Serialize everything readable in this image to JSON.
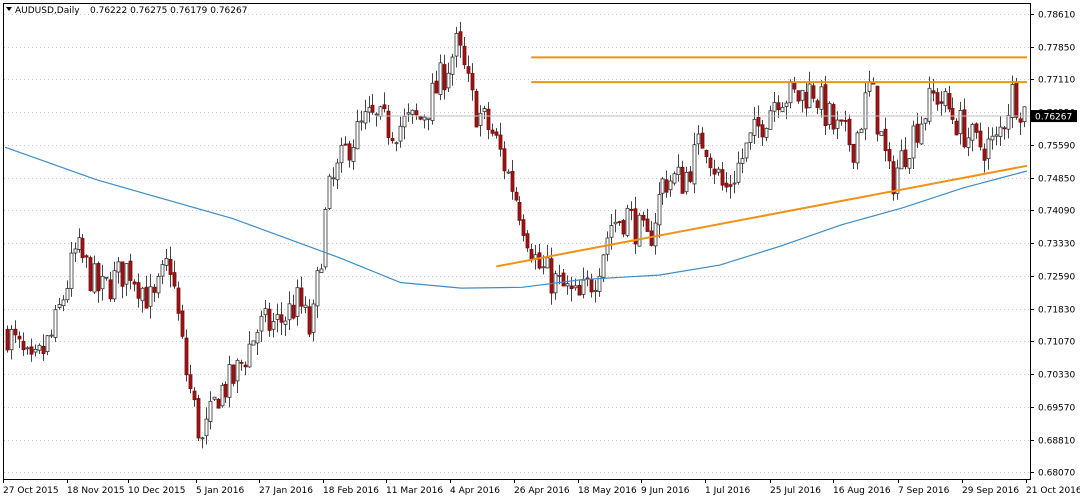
{
  "header": {
    "symbol": "AUDUSD,Daily",
    "quote": "0.76222 0.76275 0.76179 0.76267"
  },
  "colors": {
    "bull_fill": "#ffffff",
    "bull_stroke": "#333333",
    "bear_fill": "#9e1414",
    "bear_stroke": "#7a0d0d",
    "ma_line": "#3c8dc8",
    "trend_line": "#f09216",
    "grid": "#c8c8c8",
    "price_tag_bg": "#000000",
    "price_tag_text": "#ffffff"
  },
  "chart_data": {
    "type": "candlestick",
    "instrument": "AUDUSD",
    "timeframe": "Daily",
    "ylim": [
      0.679,
      0.7885
    ],
    "y_ticks": [
      "0.78610",
      "0.77850",
      "0.77110",
      "0.76350",
      "0.75590",
      "0.74850",
      "0.74090",
      "0.73330",
      "0.72590",
      "0.71830",
      "0.71070",
      "0.70330",
      "0.69570",
      "0.68810",
      "0.68070"
    ],
    "x_ticks": [
      "27 Oct 2015",
      "18 Nov 2015",
      "10 Dec 2015",
      "5 Jan 2016",
      "27 Jan 2016",
      "18 Feb 2016",
      "11 Mar 2016",
      "4 Apr 2016",
      "26 Apr 2016",
      "18 May 2016",
      "9 Jun 2016",
      "1 Jul 2016",
      "25 Jul 2016",
      "16 Aug 2016",
      "7 Sep 2016",
      "29 Sep 2016",
      "21 Oct 2016"
    ],
    "current_price": "0.76267",
    "bar_count": 257,
    "price_path_close": [
      [
        0,
        0.713
      ],
      [
        12,
        0.704
      ],
      [
        22,
        0.712
      ],
      [
        34,
        0.732
      ],
      [
        46,
        0.722
      ],
      [
        60,
        0.728
      ],
      [
        72,
        0.719
      ],
      [
        80,
        0.73
      ],
      [
        88,
        0.704
      ],
      [
        96,
        0.687
      ],
      [
        104,
        0.699
      ],
      [
        112,
        0.702
      ],
      [
        124,
        0.714
      ],
      [
        134,
        0.715
      ],
      [
        144,
        0.72
      ],
      [
        150,
        0.712
      ],
      [
        158,
        0.744
      ],
      [
        168,
        0.756
      ],
      [
        178,
        0.762
      ],
      [
        190,
        0.76
      ],
      [
        204,
        0.762
      ],
      [
        212,
        0.769
      ],
      [
        222,
        0.779
      ],
      [
        230,
        0.765
      ],
      [
        240,
        0.758
      ],
      [
        252,
        0.743
      ],
      [
        262,
        0.728
      ],
      [
        274,
        0.723
      ],
      [
        282,
        0.72
      ],
      [
        290,
        0.726
      ],
      [
        298,
        0.738
      ],
      [
        306,
        0.74
      ],
      [
        316,
        0.733
      ],
      [
        324,
        0.748
      ],
      [
        334,
        0.748
      ],
      [
        344,
        0.758
      ],
      [
        354,
        0.745
      ],
      [
        366,
        0.756
      ],
      [
        380,
        0.768
      ],
      [
        390,
        0.767
      ],
      [
        398,
        0.769
      ],
      [
        408,
        0.76
      ],
      [
        418,
        0.756
      ],
      [
        426,
        0.77
      ],
      [
        436,
        0.747
      ],
      [
        446,
        0.758
      ],
      [
        458,
        0.768
      ],
      [
        468,
        0.762
      ],
      [
        478,
        0.756
      ],
      [
        488,
        0.756
      ],
      [
        496,
        0.768
      ],
      [
        502,
        0.764
      ]
    ],
    "ma_line": [
      [
        0,
        0.7555
      ],
      [
        60,
        0.748
      ],
      [
        150,
        0.739
      ],
      [
        220,
        0.73
      ],
      [
        260,
        0.7243
      ],
      [
        300,
        0.723
      ],
      [
        340,
        0.7232
      ],
      [
        380,
        0.725
      ],
      [
        430,
        0.726
      ],
      [
        470,
        0.7283
      ],
      [
        510,
        0.7327
      ],
      [
        550,
        0.7376
      ],
      [
        590,
        0.7415
      ],
      [
        630,
        0.7461
      ],
      [
        672,
        0.75
      ]
    ],
    "resistance_lines": [
      {
        "x1": 346,
        "x2": 672,
        "y": 0.7762
      },
      {
        "x1": 346,
        "x2": 672,
        "y": 0.7705
      }
    ],
    "support_trendline": {
      "x1": 323,
      "y1": 0.728,
      "x2": 672,
      "y2": 0.7512
    }
  }
}
